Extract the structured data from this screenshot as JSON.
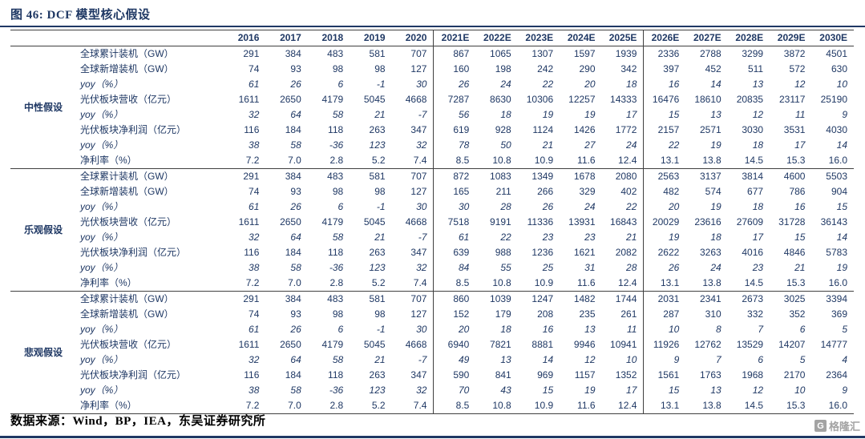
{
  "figure": {
    "title": "图 46: DCF 模型核心假设",
    "source": "数据来源：Wind，BP，IEA，东吴证券研究所",
    "logo_icon": "G",
    "logo_text": "格隆汇",
    "accent_color": "#1f3864"
  },
  "table": {
    "years": [
      "2016",
      "2017",
      "2018",
      "2019",
      "2020",
      "2021E",
      "2022E",
      "2023E",
      "2024E",
      "2025E",
      "2026E",
      "2027E",
      "2028E",
      "2029E",
      "2030E"
    ],
    "groups": [
      {
        "name": "中性假设",
        "rows": [
          {
            "label": "全球累计装机（GW）",
            "italic": false,
            "values": [
              "291",
              "384",
              "483",
              "581",
              "707",
              "867",
              "1065",
              "1307",
              "1597",
              "1939",
              "2336",
              "2788",
              "3299",
              "3872",
              "4501"
            ]
          },
          {
            "label": "全球新增装机（GW）",
            "italic": false,
            "values": [
              "74",
              "93",
              "98",
              "98",
              "127",
              "160",
              "198",
              "242",
              "290",
              "342",
              "397",
              "452",
              "511",
              "572",
              "630"
            ]
          },
          {
            "label": "yoy（%）",
            "italic": true,
            "values": [
              "61",
              "26",
              "6",
              "-1",
              "30",
              "26",
              "24",
              "22",
              "20",
              "18",
              "16",
              "14",
              "13",
              "12",
              "10"
            ]
          },
          {
            "label": "光伏板块营收（亿元）",
            "italic": false,
            "values": [
              "1611",
              "2650",
              "4179",
              "5045",
              "4668",
              "7287",
              "8630",
              "10306",
              "12257",
              "14333",
              "16476",
              "18610",
              "20835",
              "23117",
              "25190"
            ]
          },
          {
            "label": "yoy（%）",
            "italic": true,
            "values": [
              "32",
              "64",
              "58",
              "21",
              "-7",
              "56",
              "18",
              "19",
              "19",
              "17",
              "15",
              "13",
              "12",
              "11",
              "9"
            ]
          },
          {
            "label": "光伏板块净利润（亿元）",
            "italic": false,
            "values": [
              "116",
              "184",
              "118",
              "263",
              "347",
              "619",
              "928",
              "1124",
              "1426",
              "1772",
              "2157",
              "2571",
              "3030",
              "3531",
              "4030"
            ]
          },
          {
            "label": "yoy（%）",
            "italic": true,
            "values": [
              "38",
              "58",
              "-36",
              "123",
              "32",
              "78",
              "50",
              "21",
              "27",
              "24",
              "22",
              "19",
              "18",
              "17",
              "14"
            ]
          },
          {
            "label": "净利率（%）",
            "italic": false,
            "values": [
              "7.2",
              "7.0",
              "2.8",
              "5.2",
              "7.4",
              "8.5",
              "10.8",
              "10.9",
              "11.6",
              "12.4",
              "13.1",
              "13.8",
              "14.5",
              "15.3",
              "16.0"
            ]
          }
        ]
      },
      {
        "name": "乐观假设",
        "rows": [
          {
            "label": "全球累计装机（GW）",
            "italic": false,
            "values": [
              "291",
              "384",
              "483",
              "581",
              "707",
              "872",
              "1083",
              "1349",
              "1678",
              "2080",
              "2563",
              "3137",
              "3814",
              "4600",
              "5503"
            ]
          },
          {
            "label": "全球新增装机（GW）",
            "italic": false,
            "values": [
              "74",
              "93",
              "98",
              "98",
              "127",
              "165",
              "211",
              "266",
              "329",
              "402",
              "482",
              "574",
              "677",
              "786",
              "904"
            ]
          },
          {
            "label": "yoy（%）",
            "italic": true,
            "values": [
              "61",
              "26",
              "6",
              "-1",
              "30",
              "30",
              "28",
              "26",
              "24",
              "22",
              "20",
              "19",
              "18",
              "16",
              "15"
            ]
          },
          {
            "label": "光伏板块营收（亿元）",
            "italic": false,
            "values": [
              "1611",
              "2650",
              "4179",
              "5045",
              "4668",
              "7518",
              "9191",
              "11336",
              "13931",
              "16843",
              "20029",
              "23616",
              "27609",
              "31728",
              "36143"
            ]
          },
          {
            "label": "yoy（%）",
            "italic": true,
            "values": [
              "32",
              "64",
              "58",
              "21",
              "-7",
              "61",
              "22",
              "23",
              "23",
              "21",
              "19",
              "18",
              "17",
              "15",
              "14"
            ]
          },
          {
            "label": "光伏板块净利润（亿元）",
            "italic": false,
            "values": [
              "116",
              "184",
              "118",
              "263",
              "347",
              "639",
              "988",
              "1236",
              "1621",
              "2082",
              "2622",
              "3263",
              "4016",
              "4846",
              "5783"
            ]
          },
          {
            "label": "yoy（%）",
            "italic": true,
            "values": [
              "38",
              "58",
              "-36",
              "123",
              "32",
              "84",
              "55",
              "25",
              "31",
              "28",
              "26",
              "24",
              "23",
              "21",
              "19"
            ]
          },
          {
            "label": "净利率（%）",
            "italic": false,
            "values": [
              "7.2",
              "7.0",
              "2.8",
              "5.2",
              "7.4",
              "8.5",
              "10.8",
              "10.9",
              "11.6",
              "12.4",
              "13.1",
              "13.8",
              "14.5",
              "15.3",
              "16.0"
            ]
          }
        ]
      },
      {
        "name": "悲观假设",
        "rows": [
          {
            "label": "全球累计装机（GW）",
            "italic": false,
            "values": [
              "291",
              "384",
              "483",
              "581",
              "707",
              "860",
              "1039",
              "1247",
              "1482",
              "1744",
              "2031",
              "2341",
              "2673",
              "3025",
              "3394"
            ]
          },
          {
            "label": "全球新增装机（GW）",
            "italic": false,
            "values": [
              "74",
              "93",
              "98",
              "98",
              "127",
              "152",
              "179",
              "208",
              "235",
              "261",
              "287",
              "310",
              "332",
              "352",
              "369"
            ]
          },
          {
            "label": "yoy（%）",
            "italic": true,
            "values": [
              "61",
              "26",
              "6",
              "-1",
              "30",
              "20",
              "18",
              "16",
              "13",
              "11",
              "10",
              "8",
              "7",
              "6",
              "5"
            ]
          },
          {
            "label": "光伏板块营收（亿元）",
            "italic": false,
            "values": [
              "1611",
              "2650",
              "4179",
              "5045",
              "4668",
              "6940",
              "7821",
              "8881",
              "9946",
              "10941",
              "11926",
              "12762",
              "13529",
              "14207",
              "14777"
            ]
          },
          {
            "label": "yoy（%）",
            "italic": true,
            "values": [
              "32",
              "64",
              "58",
              "21",
              "-7",
              "49",
              "13",
              "14",
              "12",
              "10",
              "9",
              "7",
              "6",
              "5",
              "4"
            ]
          },
          {
            "label": "光伏板块净利润（亿元）",
            "italic": false,
            "values": [
              "116",
              "184",
              "118",
              "263",
              "347",
              "590",
              "841",
              "969",
              "1157",
              "1352",
              "1561",
              "1763",
              "1968",
              "2170",
              "2364"
            ]
          },
          {
            "label": "yoy（%）",
            "italic": true,
            "values": [
              "38",
              "58",
              "-36",
              "123",
              "32",
              "70",
              "43",
              "15",
              "19",
              "17",
              "15",
              "13",
              "12",
              "10",
              "9"
            ]
          },
          {
            "label": "净利率（%）",
            "italic": false,
            "values": [
              "7.2",
              "7.0",
              "2.8",
              "5.2",
              "7.4",
              "8.5",
              "10.8",
              "10.9",
              "11.6",
              "12.4",
              "13.1",
              "13.8",
              "14.5",
              "15.3",
              "16.0"
            ]
          }
        ]
      }
    ]
  }
}
